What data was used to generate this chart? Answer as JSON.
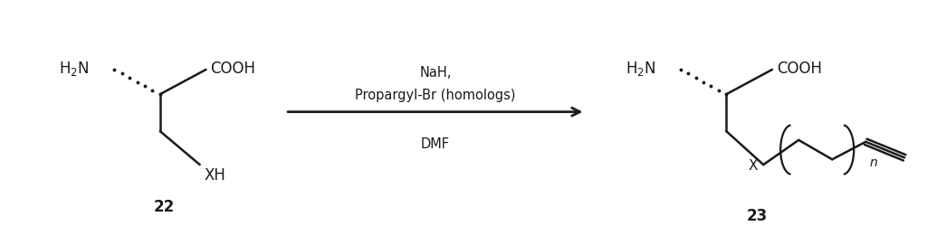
{
  "background_color": "#ffffff",
  "figure_width": 10.24,
  "figure_height": 2.51,
  "dpi": 100,
  "reactant_label": "22",
  "product_label": "23",
  "arrow_reagent_top": "NaH,",
  "arrow_reagent_mid": "Propargyl-Br (homologs)",
  "arrow_reagent_bot": "DMF",
  "text_color": "#1a1a1a",
  "line_color": "#1a1a1a",
  "font_size_labels": 12,
  "font_size_reagents": 10.5,
  "font_size_compound": 12
}
